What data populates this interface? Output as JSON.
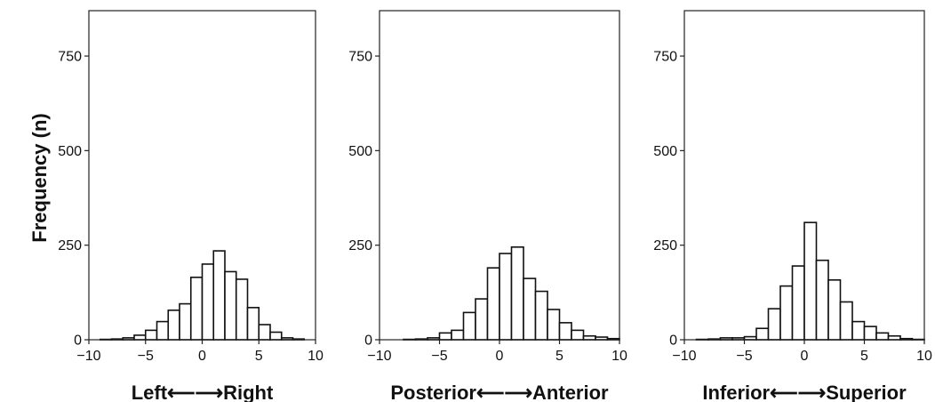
{
  "chart_data": [
    {
      "type": "bar",
      "title": "",
      "xlabel": "Left⟵⟶Right",
      "ylabel": "Frequency (n)",
      "xlim": [
        -10,
        10
      ],
      "ylim": [
        0,
        870
      ],
      "xticks": [
        -10,
        -5,
        0,
        5,
        10
      ],
      "xtick_labels": [
        "−10",
        "−5",
        "0",
        "5",
        "10"
      ],
      "yticks": [
        0,
        250,
        500,
        750
      ],
      "yticks_labels": [
        "0",
        "250",
        "500",
        "750"
      ],
      "bin_width": 1,
      "bin_starts": [
        -10,
        -9,
        -8,
        -7,
        -6,
        -5,
        -4,
        -3,
        -2,
        -1,
        0,
        1,
        2,
        3,
        4,
        5,
        6,
        7,
        8,
        9
      ],
      "values": [
        0,
        1,
        2,
        5,
        12,
        25,
        48,
        78,
        95,
        165,
        200,
        235,
        180,
        160,
        85,
        40,
        20,
        5,
        2,
        0
      ],
      "grid": false
    },
    {
      "type": "bar",
      "title": "",
      "xlabel": "Posterior⟵⟶Anterior",
      "ylabel": "",
      "xlim": [
        -10,
        10
      ],
      "ylim": [
        0,
        870
      ],
      "xticks": [
        -10,
        -5,
        0,
        5,
        10
      ],
      "xtick_labels": [
        "−10",
        "−5",
        "0",
        "5",
        "10"
      ],
      "yticks": [
        0,
        250,
        500,
        750
      ],
      "yticks_labels": [
        "0",
        "250",
        "500",
        "750"
      ],
      "bin_width": 1,
      "bin_starts": [
        -10,
        -9,
        -8,
        -7,
        -6,
        -5,
        -4,
        -3,
        -2,
        -1,
        0,
        1,
        2,
        3,
        4,
        5,
        6,
        7,
        8,
        9
      ],
      "values": [
        0,
        0,
        1,
        2,
        5,
        18,
        25,
        72,
        108,
        190,
        228,
        245,
        162,
        128,
        80,
        45,
        25,
        10,
        7,
        3
      ],
      "grid": false
    },
    {
      "type": "bar",
      "title": "",
      "xlabel": "Inferior⟵⟶Superior",
      "ylabel": "",
      "xlim": [
        -10,
        10
      ],
      "ylim": [
        0,
        870
      ],
      "xticks": [
        -10,
        -5,
        0,
        5,
        10
      ],
      "xtick_labels": [
        "−10",
        "−5",
        "0",
        "5",
        "10"
      ],
      "yticks": [
        0,
        250,
        500,
        750
      ],
      "yticks_labels": [
        "0",
        "250",
        "500",
        "750"
      ],
      "bin_width": 1,
      "bin_starts": [
        -10,
        -9,
        -8,
        -7,
        -6,
        -5,
        -4,
        -3,
        -2,
        -1,
        0,
        1,
        2,
        3,
        4,
        5,
        6,
        7,
        8,
        9
      ],
      "values": [
        0,
        1,
        2,
        5,
        5,
        8,
        30,
        82,
        142,
        195,
        310,
        210,
        158,
        100,
        48,
        35,
        18,
        10,
        3,
        1
      ],
      "grid": false
    }
  ]
}
